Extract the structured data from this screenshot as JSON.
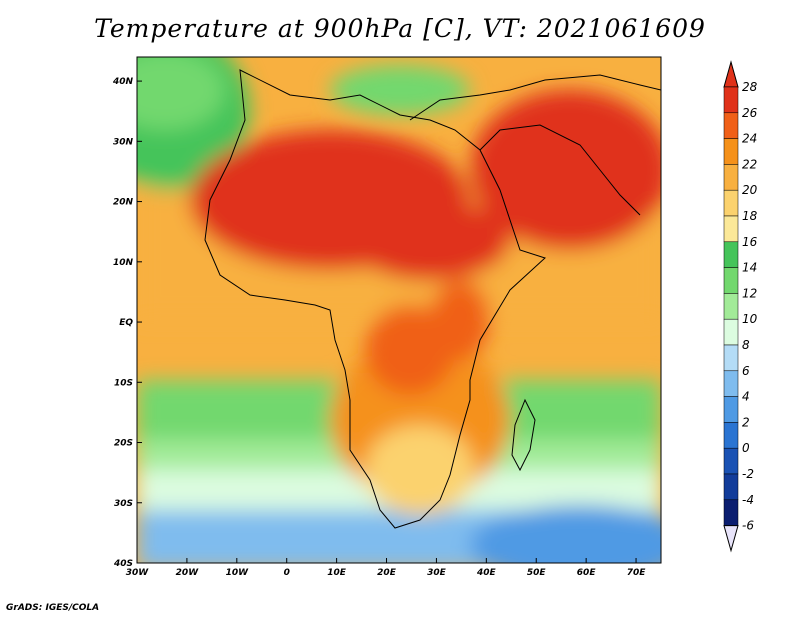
{
  "title": "Temperature at 900hPa [C], VT: 2021061609",
  "footer": "GrADS: IGES/COLA",
  "map": {
    "lon_range": [
      -30,
      75
    ],
    "lat_range": [
      -40,
      44
    ],
    "lon_ticks": [
      "30W",
      "20W",
      "10W",
      "0",
      "10E",
      "20E",
      "30E",
      "40E",
      "50E",
      "60E",
      "70E"
    ],
    "lat_ticks": [
      "40N",
      "30N",
      "20N",
      "10N",
      "EQ",
      "10S",
      "20S",
      "30S",
      "40S"
    ]
  },
  "colorbar": {
    "levels": [
      "28",
      "26",
      "24",
      "22",
      "20",
      "18",
      "16",
      "14",
      "12",
      "10",
      "8",
      "6",
      "4",
      "2",
      "0",
      "-2",
      "-4",
      "-6"
    ],
    "colors": [
      "#e0321a",
      "#f06018",
      "#f5911a",
      "#f8b040",
      "#fbd26e",
      "#fbe898",
      "#45c45a",
      "#72d86e",
      "#a2eb98",
      "#dcfce0",
      "#b4dcf6",
      "#7fbcee",
      "#4f9ae4",
      "#2a74d2",
      "#1a52b4",
      "#123c9a",
      "#0b1e70",
      "#e8e4fa"
    ]
  }
}
